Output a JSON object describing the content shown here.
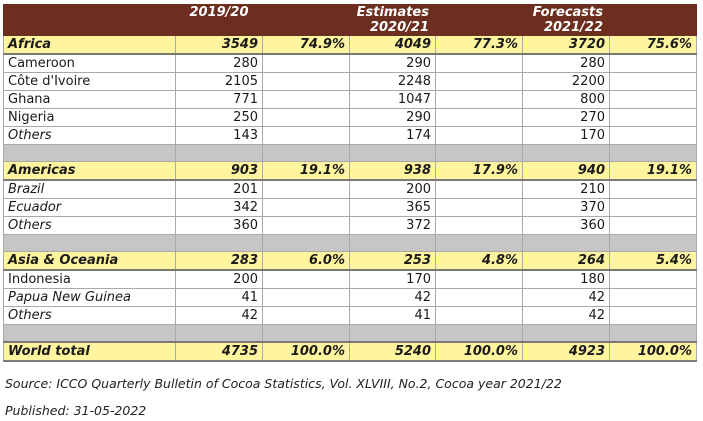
{
  "header": {
    "col1": "2019/20",
    "col2_top": "Estimates",
    "col2_bottom": "2020/21",
    "col3_top": "Forecasts",
    "col3_bottom": "2021/22"
  },
  "rows": [
    {
      "type": "region",
      "name": "Africa",
      "v1": "3549",
      "p1": "74.9%",
      "v2": "4049",
      "p2": "77.3%",
      "v3": "3720",
      "p3": "75.6%"
    },
    {
      "type": "sub",
      "name": "Cameroon",
      "v1": "280",
      "v2": "290",
      "v3": "280"
    },
    {
      "type": "sub",
      "name": "Côte d'Ivoire",
      "v1": "2105",
      "v2": "2248",
      "v3": "2200"
    },
    {
      "type": "sub",
      "name": "Ghana",
      "v1": "771",
      "v2": "1047",
      "v3": "800"
    },
    {
      "type": "sub",
      "name": "Nigeria",
      "v1": "250",
      "v2": "290",
      "v3": "270"
    },
    {
      "type": "sub",
      "name": "Others",
      "italic": true,
      "v1": "143",
      "v2": "174",
      "v3": "170"
    },
    {
      "type": "sep"
    },
    {
      "type": "region",
      "name": "Americas",
      "v1": "903",
      "p1": "19.1%",
      "v2": "938",
      "p2": "17.9%",
      "v3": "940",
      "p3": "19.1%"
    },
    {
      "type": "sub",
      "name": "Brazil",
      "italic": true,
      "v1": "201",
      "v2": "200",
      "v3": "210"
    },
    {
      "type": "sub",
      "name": "Ecuador",
      "italic": true,
      "v1": "342",
      "v2": "365",
      "v3": "370"
    },
    {
      "type": "sub",
      "name": "Others",
      "italic": true,
      "v1": "360",
      "v2": "372",
      "v3": "360"
    },
    {
      "type": "sep"
    },
    {
      "type": "region",
      "name": "Asia & Oceania",
      "v1": "283",
      "p1": "6.0%",
      "v2": "253",
      "p2": "4.8%",
      "v3": "264",
      "p3": "5.4%"
    },
    {
      "type": "sub",
      "name": "Indonesia",
      "v1": "200",
      "v2": "170",
      "v3": "180"
    },
    {
      "type": "sub",
      "name": "Papua New Guinea",
      "italic": true,
      "v1": "41",
      "v2": "42",
      "v3": "42"
    },
    {
      "type": "sub",
      "name": "Others",
      "italic": true,
      "v1": "42",
      "v2": "41",
      "v3": "42"
    },
    {
      "type": "sep"
    },
    {
      "type": "total",
      "name": "World total",
      "v1": "4735",
      "p1": "100.0%",
      "v2": "5240",
      "p2": "100.0%",
      "v3": "4923",
      "p3": "100.0%"
    }
  ],
  "footer": {
    "source": "Source: ICCO Quarterly Bulletin of Cocoa Statistics, Vol. XLVIII, No.2, Cocoa year 2021/22",
    "published": "Published: 31-05-2022"
  }
}
